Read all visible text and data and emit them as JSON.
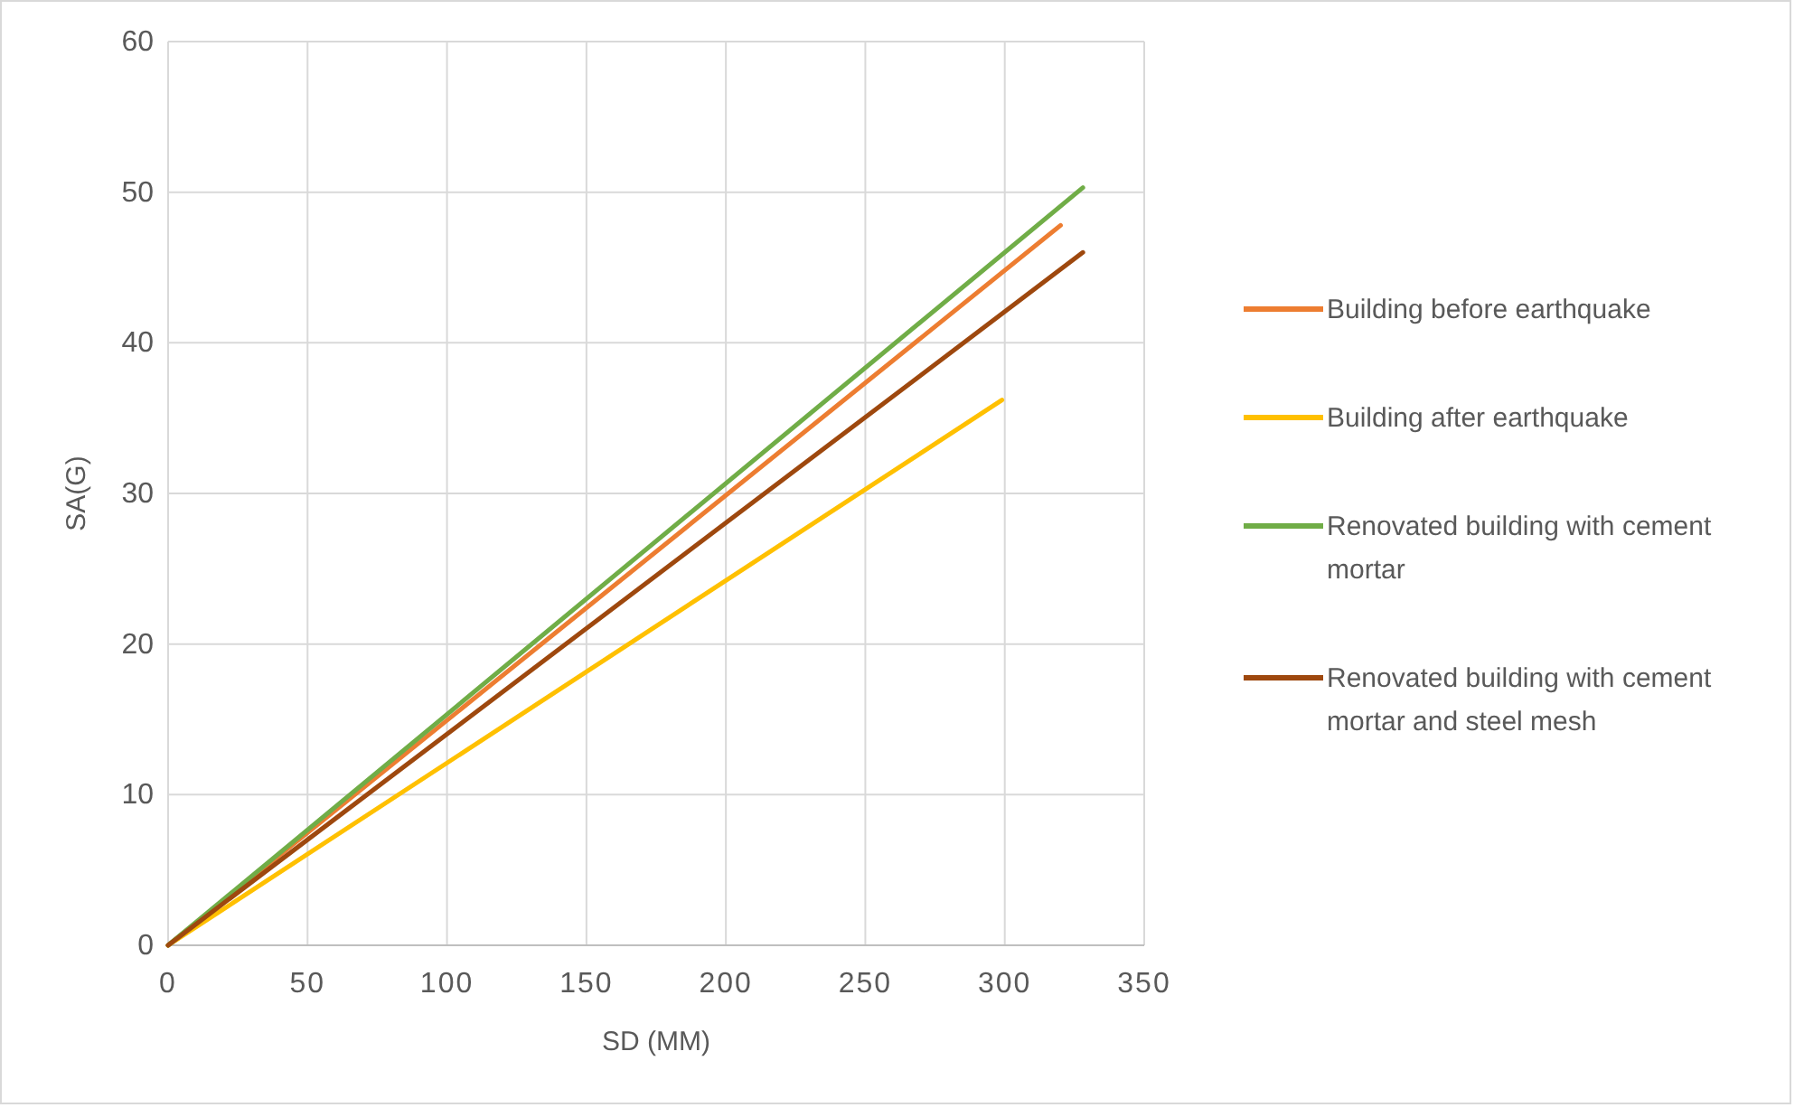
{
  "chart_data": {
    "type": "line",
    "xlabel": "SD (MM)",
    "ylabel": "SA(G)",
    "xlim": [
      0,
      350
    ],
    "xticks": [
      0,
      50,
      100,
      150,
      200,
      250,
      300,
      350
    ],
    "ylim": [
      0,
      60
    ],
    "yticks": [
      0,
      10,
      20,
      30,
      40,
      50,
      60
    ],
    "grid": true,
    "legend": "right",
    "marker": "none",
    "series": [
      {
        "name": "Building before earthquake",
        "color": "#ed7d31",
        "x": [
          0,
          320
        ],
        "values": [
          0,
          47.8
        ]
      },
      {
        "name": "Building after earthquake",
        "color": "#ffc000",
        "x": [
          0,
          299
        ],
        "values": [
          0,
          36.2
        ]
      },
      {
        "name": "Renovated building with cement mortar",
        "color": "#70ad47",
        "x": [
          0,
          328
        ],
        "values": [
          0,
          50.3
        ]
      },
      {
        "name": "Renovated building with cement mortar and steel mesh",
        "color": "#9e480e",
        "x": [
          0,
          328
        ],
        "values": [
          0,
          46
        ]
      }
    ]
  }
}
